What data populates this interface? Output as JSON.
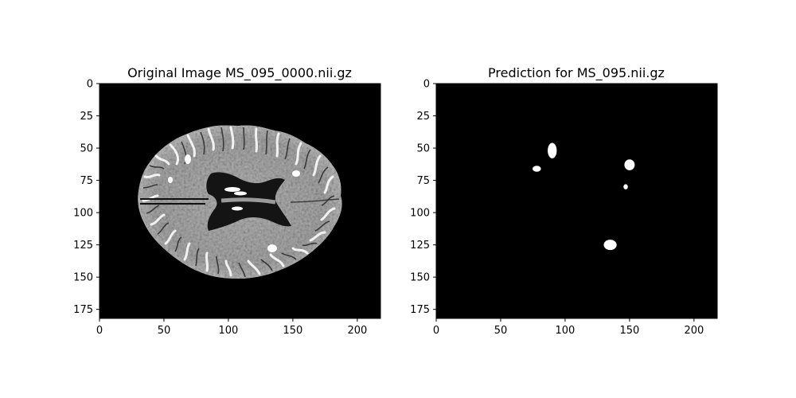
{
  "figure": {
    "background": "#ffffff",
    "panels": [
      {
        "title": "Original Image MS_095_0000.nii.gz",
        "kind": "mri-slice",
        "colormap": "gray",
        "xlim": [
          0,
          218
        ],
        "ylim": [
          182,
          0
        ],
        "x_ticks": [
          0,
          50,
          100,
          150,
          200
        ],
        "y_ticks": [
          0,
          25,
          50,
          75,
          100,
          125,
          150,
          175
        ]
      },
      {
        "title": "Prediction for MS_095.nii.gz",
        "kind": "segmentation-mask",
        "colormap": "gray",
        "xlim": [
          0,
          218
        ],
        "ylim": [
          182,
          0
        ],
        "x_ticks": [
          0,
          50,
          100,
          150,
          200
        ],
        "y_ticks": [
          0,
          25,
          50,
          75,
          100,
          125,
          150,
          175
        ],
        "lesions": [
          {
            "cx": 90,
            "cy": 52,
            "rx": 3.5,
            "ry": 6
          },
          {
            "cx": 78,
            "cy": 66,
            "rx": 3.3,
            "ry": 2.3
          },
          {
            "cx": 150,
            "cy": 63,
            "rx": 4,
            "ry": 4.2
          },
          {
            "cx": 147,
            "cy": 80,
            "rx": 1.7,
            "ry": 2
          },
          {
            "cx": 135,
            "cy": 125,
            "rx": 5,
            "ry": 4
          }
        ]
      }
    ],
    "tick_color": "#000000",
    "label_color": "#000000"
  }
}
